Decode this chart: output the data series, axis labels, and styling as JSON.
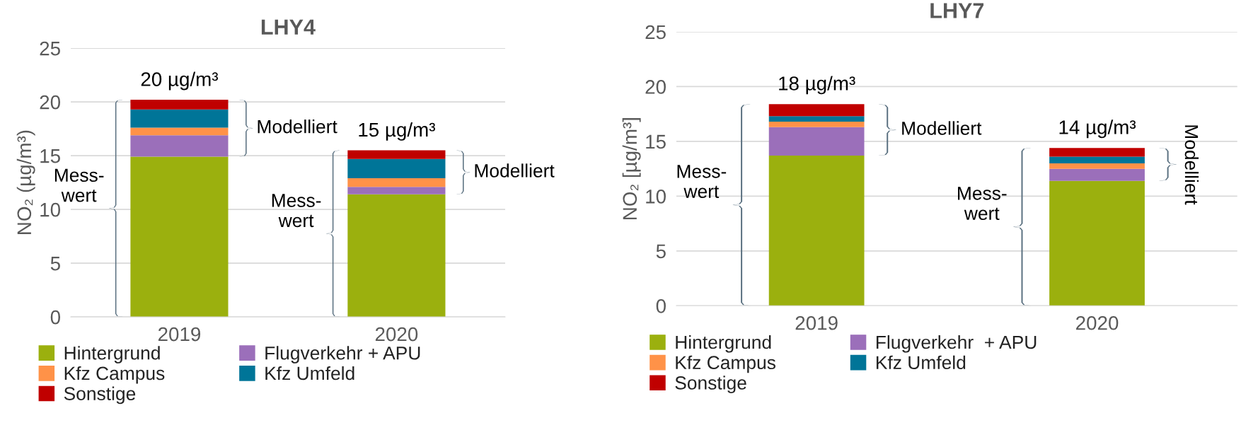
{
  "chart_data": [
    {
      "type": "bar",
      "title": "LHY4",
      "ylabel": "NO₂ (µg/m³)",
      "categories": [
        "2019",
        "2020"
      ],
      "stacked": true,
      "ylim": [
        0,
        25
      ],
      "yticks": [
        0,
        5,
        10,
        15,
        20,
        25
      ],
      "grid": "y",
      "legend": "bottom",
      "series": [
        {
          "name": "Hintergrund",
          "color": "#9bb00e",
          "values": [
            14.9,
            11.4
          ]
        },
        {
          "name": "Flugverkehr + APU",
          "color": "#9b6fba",
          "values": [
            2.0,
            0.7
          ]
        },
        {
          "name": "Kfz Campus",
          "color": "#ff9248",
          "values": [
            0.7,
            0.8
          ]
        },
        {
          "name": "Kfz Umfeld",
          "color": "#007598",
          "values": [
            1.7,
            1.8
          ]
        },
        {
          "name": "Sonstige",
          "color": "#c00000",
          "values": [
            0.9,
            0.8
          ]
        }
      ],
      "totals": [
        "20 µg/m³",
        "15 µg/m³"
      ],
      "annotations": [
        "Mess-\nwert",
        "Modelliert",
        "Mess-\nwert",
        "Modelliert"
      ]
    },
    {
      "type": "bar",
      "title": "LHY7",
      "ylabel": "NO₂ [µg/m³]",
      "categories": [
        "2019",
        "2020"
      ],
      "stacked": true,
      "ylim": [
        0,
        25
      ],
      "yticks": [
        0,
        5,
        10,
        15,
        20,
        25
      ],
      "grid": "y",
      "legend": "bottom",
      "series": [
        {
          "name": "Hintergrund",
          "color": "#9bb00e",
          "values": [
            13.7,
            11.4
          ]
        },
        {
          "name": "Flugverkehr  + APU",
          "color": "#9b6fba",
          "values": [
            2.6,
            1.1
          ]
        },
        {
          "name": "Kfz Campus",
          "color": "#ff9248",
          "values": [
            0.5,
            0.5
          ]
        },
        {
          "name": "Kfz Umfeld",
          "color": "#007598",
          "values": [
            0.5,
            0.6
          ]
        },
        {
          "name": "Sonstige",
          "color": "#c00000",
          "values": [
            1.1,
            0.8
          ]
        }
      ],
      "totals": [
        "18 µg/m³",
        "14 µg/m³"
      ],
      "annotations": [
        "Mess-\nwert",
        "Modelliert",
        "Mess-\nwert",
        "Modelliert"
      ]
    }
  ]
}
